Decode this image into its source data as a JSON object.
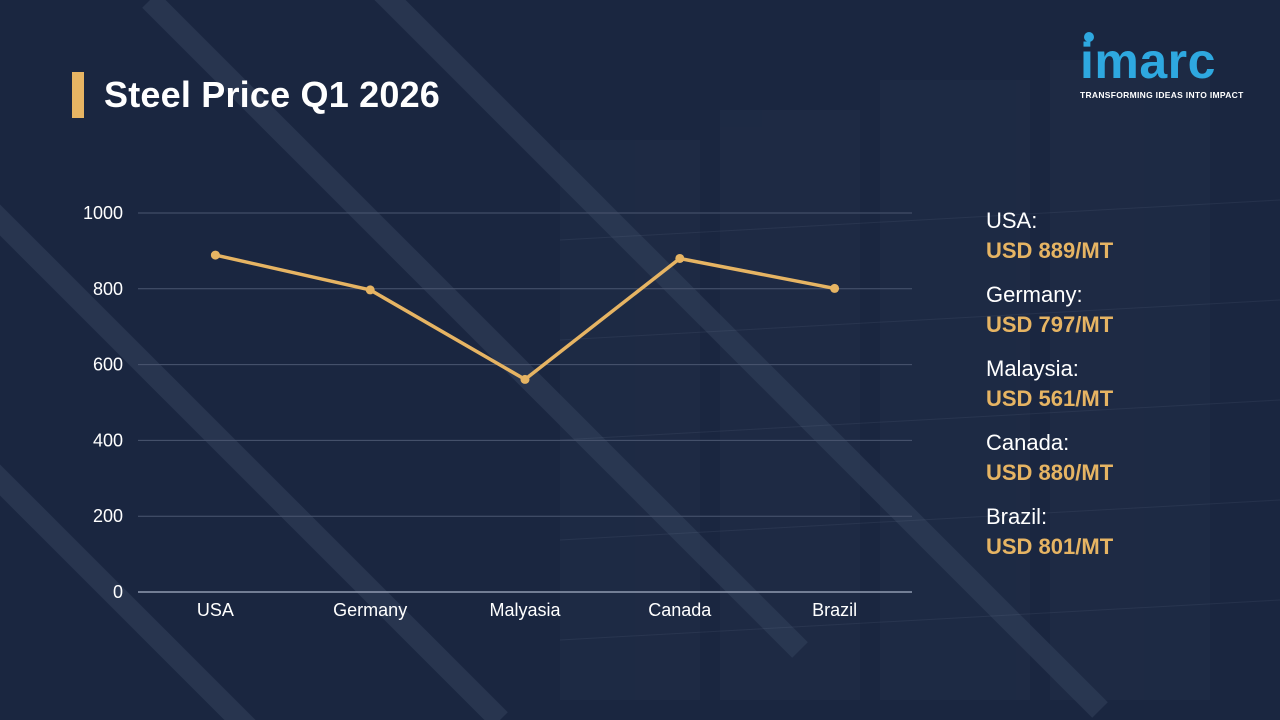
{
  "header": {
    "title": "Steel Price Q1 2026"
  },
  "logo": {
    "word": "imarc",
    "tagline": "TRANSFORMING IDEAS INTO IMPACT"
  },
  "colors": {
    "accent": "#e6b463",
    "background": "#1a2640",
    "logo": "#2ea8e0",
    "grid": "#4a5670"
  },
  "chart_data": {
    "type": "line",
    "categories": [
      "USA",
      "Germany",
      "Malyasia",
      "Canada",
      "Brazil"
    ],
    "values": [
      889,
      797,
      561,
      880,
      801
    ],
    "ylim": [
      0,
      1000
    ],
    "yticks": [
      "0",
      "200",
      "400",
      "600",
      "800",
      "1000"
    ],
    "grid": true,
    "title": "",
    "xlabel": "",
    "ylabel": ""
  },
  "legend": {
    "items": [
      {
        "country": "USA:",
        "value": "USD 889/MT"
      },
      {
        "country": "Germany:",
        "value": "USD 797/MT"
      },
      {
        "country": "Malaysia:",
        "value": "USD 561/MT"
      },
      {
        "country": "Canada:",
        "value": "USD 880/MT"
      },
      {
        "country": "Brazil:",
        "value": "USD 801/MT"
      }
    ]
  }
}
